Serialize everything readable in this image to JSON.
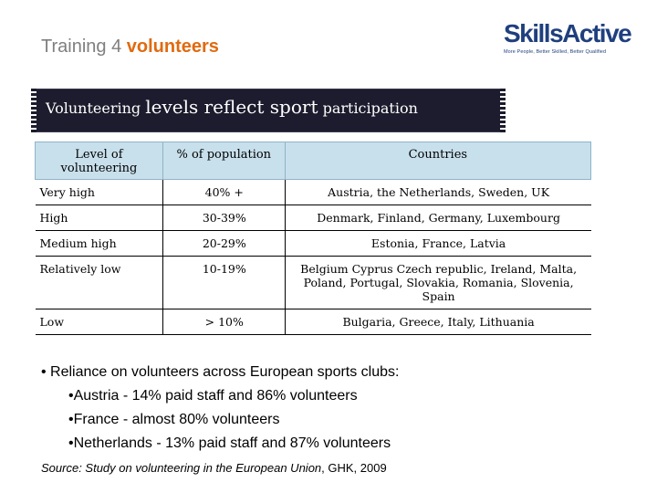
{
  "title": {
    "prefix": "Training 4",
    "accent": "volunteers"
  },
  "logo": {
    "word_skills": "Skills",
    "word_active": "Active",
    "tagline": "More People, Better Skilled, Better Qualified"
  },
  "banner": {
    "part1": "Volunteering",
    "part2": "levels reflect sport",
    "part3": "participation"
  },
  "table": {
    "headers": [
      "Level of volunteering",
      "% of population",
      "Countries"
    ],
    "rows": [
      {
        "level": "Very high",
        "pct": "40% +",
        "countries": "Austria, the Netherlands, Sweden, UK"
      },
      {
        "level": "High",
        "pct": "30-39%",
        "countries": "Denmark, Finland, Germany, Luxembourg"
      },
      {
        "level": "Medium high",
        "pct": "20-29%",
        "countries": "Estonia, France, Latvia"
      },
      {
        "level": "Relatively low",
        "pct": "10-19%",
        "countries": "Belgium Cyprus Czech republic, Ireland, Malta, Poland, Portugal, Slovakia, Romania, Slovenia, Spain"
      },
      {
        "level": "Low",
        "pct": "> 10%",
        "countries": "Bulgaria, Greece, Italy, Lithuania"
      }
    ]
  },
  "bullets": {
    "main": "• Reliance on volunteers across European sports clubs:",
    "items": [
      "•Austria - 14% paid staff and 86% volunteers",
      "•France - almost 80% volunteers",
      "•Netherlands - 13% paid staff and 87% volunteers"
    ]
  },
  "source": {
    "italic": "Source: Study on volunteering in the European Union",
    "rest": ", GHK, 2009"
  },
  "colors": {
    "accent": "#e06a10",
    "title_gray": "#7f7f7f",
    "banner_bg": "#1c1c2e",
    "header_bg": "#c8e0ec",
    "logo_blue": "#1f3f7f"
  }
}
